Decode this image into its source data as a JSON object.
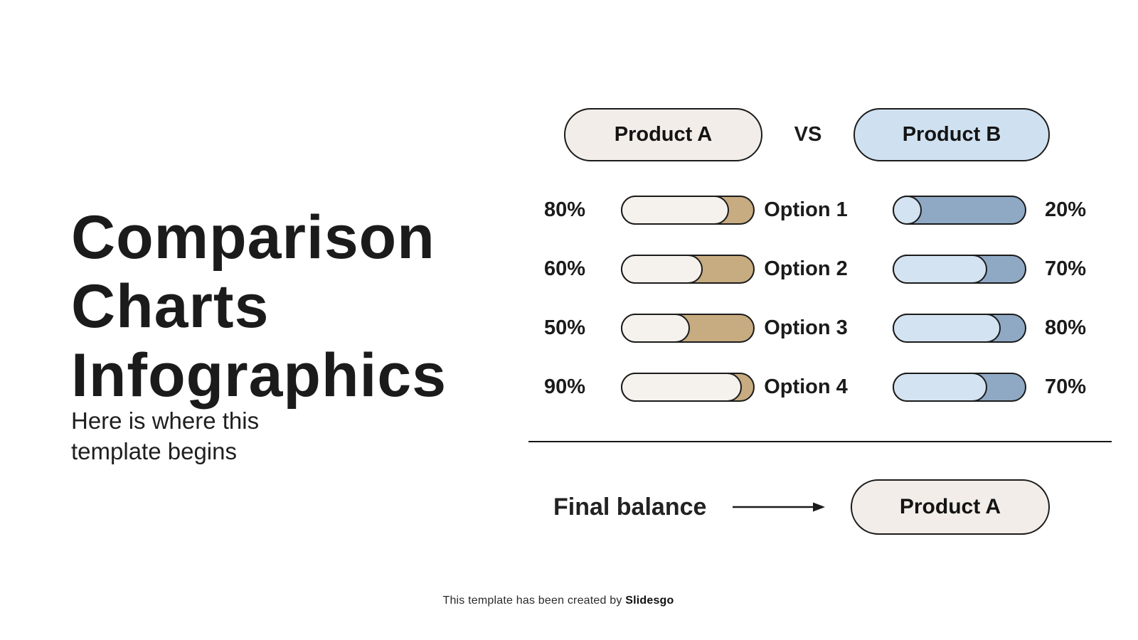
{
  "slide": {
    "title_lines": [
      "Comparison",
      "Charts",
      "Infographics"
    ],
    "subtitle_lines": [
      "Here is where this",
      "template begins"
    ],
    "footer_prefix": "This template has been created by ",
    "footer_brand": "Slidesgo"
  },
  "comparison": {
    "product_a_label": "Product A",
    "vs_label": "VS",
    "product_b_label": "Product B",
    "rows": [
      {
        "a_pct": "80%",
        "a_value": 80,
        "option": "Option 1",
        "b_value": 20,
        "b_pct": "20%"
      },
      {
        "a_pct": "60%",
        "a_value": 60,
        "option": "Option 2",
        "b_value": 70,
        "b_pct": "70%"
      },
      {
        "a_pct": "50%",
        "a_value": 50,
        "option": "Option 3",
        "b_value": 80,
        "b_pct": "80%"
      },
      {
        "a_pct": "90%",
        "a_value": 90,
        "option": "Option 4",
        "b_value": 70,
        "b_pct": "70%"
      }
    ],
    "final_label": "Final balance",
    "final_result": "Product A"
  },
  "colors": {
    "ink": "#1b1b1b",
    "outline": "#1b1b1b",
    "cream": "#f2ede8",
    "cream_fill": "#f5f1ec",
    "tan": "#c7ab81",
    "blue_pill": "#cfe1f0",
    "blue_fill": "#d4e3f1",
    "blue_track": "#8fa9c4"
  },
  "chart_data": {
    "type": "bar",
    "orientation": "horizontal",
    "title": "Comparison Charts Infographics",
    "subtitle": "Here is where this template begins",
    "categories": [
      "Option 1",
      "Option 2",
      "Option 3",
      "Option 4"
    ],
    "series": [
      {
        "name": "Product A",
        "values": [
          80,
          60,
          50,
          90
        ],
        "unit": "%",
        "fill_color": "#f5f1ec",
        "track_color": "#c7ab81"
      },
      {
        "name": "Product B",
        "values": [
          20,
          70,
          80,
          70
        ],
        "unit": "%",
        "fill_color": "#d4e3f1",
        "track_color": "#8fa9c4"
      }
    ],
    "value_range": [
      0,
      100
    ],
    "legend_position": "top",
    "grid": false,
    "annotation": "Final balance -> Product A"
  }
}
